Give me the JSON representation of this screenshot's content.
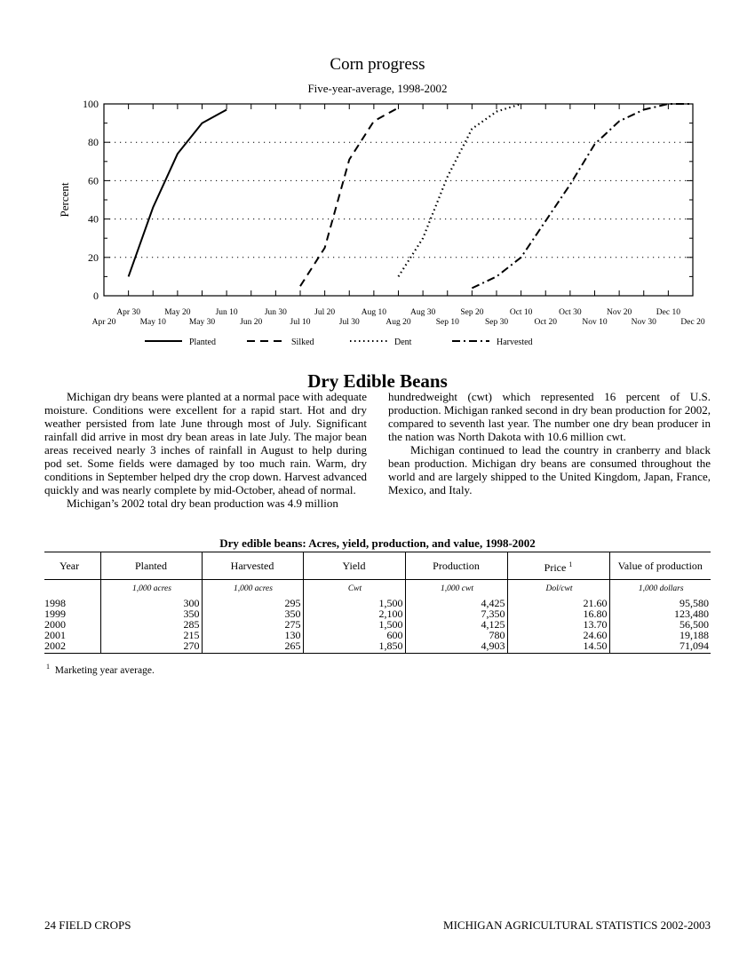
{
  "chart_data": {
    "type": "line",
    "title": "Corn progress",
    "subtitle": "Five-year-average, 1998-2002",
    "ylabel": "Percent",
    "ylim": [
      0,
      100
    ],
    "y_ticks": [
      "0",
      "20",
      "40",
      "60",
      "80",
      "100"
    ],
    "x_ticks_top": [
      "Apr 30",
      "May 20",
      "Jun 10",
      "Jun 30",
      "Jul 20",
      "Aug 10",
      "Aug 30",
      "Sep 20",
      "Oct 10",
      "Oct 30",
      "Nov 20",
      "Dec 10"
    ],
    "x_ticks_bottom": [
      "Apr 20",
      "May 10",
      "May 30",
      "Jun 20",
      "Jul 10",
      "Jul 30",
      "Aug 20",
      "Sep 10",
      "Sep 30",
      "Oct 20",
      "Nov 10",
      "Nov 30",
      "Dec 20"
    ],
    "grid": "horizontal dotted",
    "legend_position": "bottom",
    "series": [
      {
        "name": "Planted",
        "style": "solid",
        "x": [
          "Apr 30",
          "May 10",
          "May 20",
          "May 30",
          "Jun 10"
        ],
        "y": [
          10,
          46,
          74,
          90,
          97
        ]
      },
      {
        "name": "Silked",
        "style": "dashed",
        "x": [
          "Jul 10",
          "Jul 20",
          "Jul 30",
          "Aug 10",
          "Aug 20"
        ],
        "y": [
          5,
          25,
          71,
          91,
          98
        ]
      },
      {
        "name": "Dent",
        "style": "dotted",
        "x": [
          "Aug 20",
          "Aug 30",
          "Sep 10",
          "Sep 20",
          "Sep 30",
          "Oct 10"
        ],
        "y": [
          10,
          30,
          62,
          87,
          96,
          100
        ]
      },
      {
        "name": "Harvested",
        "style": "dash-dot",
        "x": [
          "Sep 20",
          "Sep 30",
          "Oct 10",
          "Oct 20",
          "Oct 30",
          "Nov 10",
          "Nov 20",
          "Nov 30",
          "Dec 10",
          "Dec 20"
        ],
        "y": [
          4,
          10,
          20,
          39,
          58,
          79,
          91,
          97,
          100,
          100
        ]
      }
    ]
  },
  "section_title": "Dry Edible Beans",
  "article": {
    "left_paragraphs": [
      "Michigan dry beans were planted at a normal pace with adequate moisture. Conditions were excellent for a rapid start. Hot and dry weather persisted from late June through most of July. Significant rainfall did arrive in most dry bean areas in late July. The major bean areas received nearly 3 inches of rainfall in August to help during pod set. Some fields were damaged by too much rain. Warm, dry conditions in September helped dry the crop down. Harvest advanced quickly and was nearly complete by mid-October, ahead of normal.",
      "Michigan’s 2002 total dry bean production was 4.9 million"
    ],
    "right_continuation": "hundredweight (cwt) which represented 16  percent of U.S. production. Michigan ranked second in dry bean production for 2002, compared to seventh last year. The number one dry bean producer in the nation was North Dakota  with 10.6 million cwt.",
    "right_paragraph": "Michigan continued to lead the country in cranberry and black bean production. Michigan dry beans are consumed throughout the world and are largely shipped to the United Kingdom, Japan, France, Mexico, and Italy."
  },
  "table": {
    "title": "Dry edible beans: Acres, yield, production, and value, 1998-2002",
    "headers": {
      "year": "Year",
      "planted": "Planted",
      "harvested": "Harvested",
      "yield": "Yield",
      "production": "Production",
      "price": "Price",
      "price_note": "1",
      "value": "Value of production"
    },
    "units": [
      "",
      "1,000 acres",
      "1,000 acres",
      "Cwt",
      "1,000 cwt",
      "Dol/cwt",
      "1,000 dollars"
    ],
    "rows": [
      [
        "1998",
        "300",
        "295",
        "1,500",
        "4,425",
        "21.60",
        "95,580"
      ],
      [
        "1999",
        "350",
        "350",
        "2,100",
        "7,350",
        "16.80",
        "123,480"
      ],
      [
        "2000",
        "285",
        "275",
        "1,500",
        "4,125",
        "13.70",
        "56,500"
      ],
      [
        "2001",
        "215",
        "130",
        "600",
        "780",
        "24.60",
        "19,188"
      ],
      [
        "2002",
        "270",
        "265",
        "1,850",
        "4,903",
        "14.50",
        "71,094"
      ]
    ],
    "footnote_mark": "1",
    "footnote": "Marketing year average."
  },
  "footer": {
    "left": "24  FIELD CROPS",
    "right": "MICHIGAN AGRICULTURAL STATISTICS 2002-2003"
  }
}
